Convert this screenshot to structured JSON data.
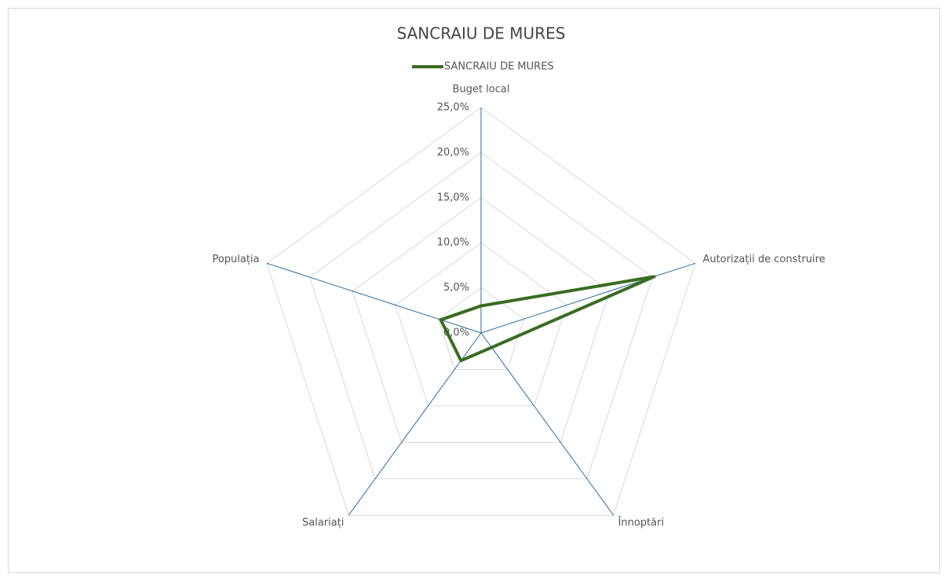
{
  "chart_data": {
    "type": "radar",
    "title": "SANCRAIU DE MURES",
    "categories": [
      "Buget local",
      "Autorizații de construire",
      "Înnoptări",
      "Salariați",
      "Populația"
    ],
    "series": [
      {
        "name": "SANCRAIU DE MURES",
        "color": "#3a6b22",
        "values": [
          3.0,
          20.2,
          2.0,
          3.8,
          4.7
        ]
      }
    ],
    "ylim": [
      0,
      25
    ],
    "yticks": [
      {
        "value": 0,
        "label": "0,0%"
      },
      {
        "value": 5,
        "label": "5,0%"
      },
      {
        "value": 10,
        "label": "10,0%"
      },
      {
        "value": 15,
        "label": "15,0%"
      },
      {
        "value": 20,
        "label": "20,0%"
      },
      {
        "value": 25,
        "label": "25,0%"
      }
    ],
    "grid": true,
    "legend": "top"
  }
}
